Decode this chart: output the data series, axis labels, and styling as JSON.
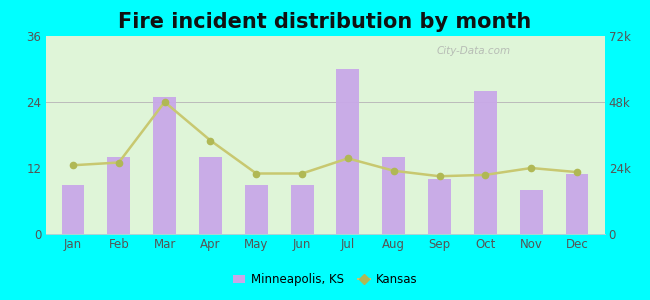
{
  "title": "Fire incident distribution by month",
  "months": [
    "Jan",
    "Feb",
    "Mar",
    "Apr",
    "May",
    "Jun",
    "Jul",
    "Aug",
    "Sep",
    "Oct",
    "Nov",
    "Dec"
  ],
  "minneapolis_values": [
    9,
    14,
    25,
    14,
    9,
    9,
    30,
    14,
    10,
    26,
    8,
    11
  ],
  "kansas_values": [
    25000,
    26000,
    48000,
    34000,
    22000,
    22000,
    27500,
    23000,
    21000,
    21500,
    24000,
    22500
  ],
  "bar_color": "#c8a8e8",
  "line_color": "#c8c870",
  "line_marker_color": "#b0b855",
  "left_ylim": [
    0,
    36
  ],
  "right_ylim": [
    0,
    72000
  ],
  "left_yticks": [
    0,
    12,
    24,
    36
  ],
  "right_yticks": [
    0,
    24000,
    48000,
    72000
  ],
  "right_yticklabels": [
    "0",
    "24k",
    "48k",
    "72k"
  ],
  "plot_bg_color": "#dff5d8",
  "outer_bg": "#00ffff",
  "title_fontsize": 15,
  "legend_label_bar": "Minneapolis, KS",
  "legend_label_line": "Kansas",
  "watermark": "City-Data.com"
}
